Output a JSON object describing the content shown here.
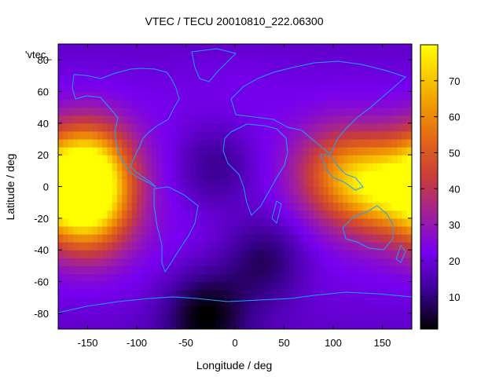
{
  "chart_data": {
    "type": "heatmap",
    "title": "VTEC / TECU 20010810_222.06300",
    "xlabel": "Longitude / deg",
    "ylabel": "Latitude / deg",
    "xlim": [
      -180,
      180
    ],
    "ylim": [
      -90,
      90
    ],
    "x_ticks": [
      -150,
      -100,
      -50,
      0,
      50,
      100,
      150
    ],
    "y_ticks": [
      -80,
      -60,
      -40,
      -20,
      0,
      20,
      40,
      60,
      80
    ],
    "colorbar": {
      "min": 1,
      "max": 80,
      "ticks": [
        10,
        20,
        30,
        40,
        50,
        60,
        70
      ]
    },
    "key_label": "'vtec_",
    "overlay": "world coastlines",
    "colormap": "black-blue-purple-red-orange-yellow",
    "coastline_color": "#1ea0ff",
    "grid": false,
    "legend": "top-left",
    "field_features": [
      {
        "lon": -150,
        "lat": 12,
        "vtec": 78
      },
      {
        "lon": -150,
        "lat": -15,
        "vtec": 70
      },
      {
        "lon": 150,
        "lat": 0,
        "vtec": 68
      },
      {
        "lon": 105,
        "lat": 8,
        "vtec": 52
      },
      {
        "lon": 30,
        "lat": -45,
        "vtec": 10
      },
      {
        "lon": -20,
        "lat": 12,
        "vtec": 12
      },
      {
        "lon": -30,
        "lat": -80,
        "vtec": 6
      },
      {
        "lon": 0,
        "lat": 70,
        "vtec": 25
      }
    ]
  }
}
